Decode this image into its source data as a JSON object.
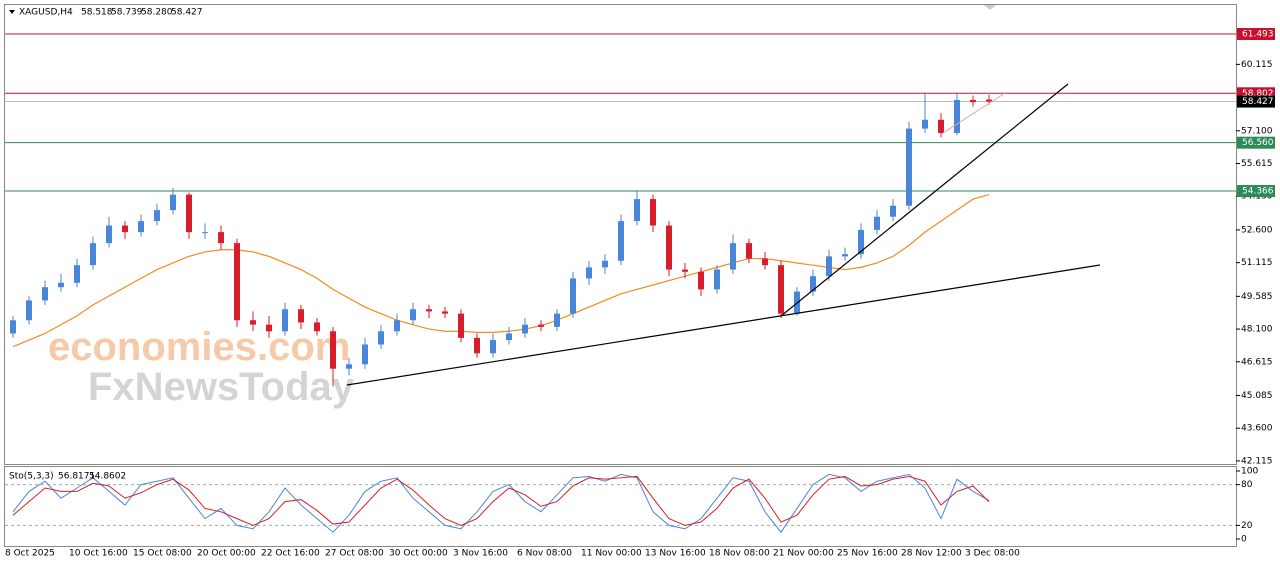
{
  "chart_data": [
    {
      "type": "candlestick",
      "title": "XAGUSD,H4",
      "ohlc_labels": [
        "58.518",
        "58.739",
        "58.280",
        "58.427"
      ],
      "watermark": [
        "economies.com",
        "FxNewsToday"
      ],
      "categories": [
        "8 Oct 2025",
        null,
        null,
        null,
        "10 Oct 16:00",
        null,
        null,
        null,
        "15 Oct 08:00",
        null,
        null,
        null,
        "20 Oct 00:00",
        null,
        null,
        null,
        "22 Oct 16:00",
        null,
        null,
        null,
        "27 Oct 08:00",
        null,
        null,
        null,
        "30 Oct 00:00",
        null,
        null,
        null,
        "3 Nov 16:00",
        null,
        null,
        null,
        "6 Nov 08:00",
        null,
        null,
        null,
        "11 Nov 00:00",
        null,
        null,
        null,
        "13 Nov 16:00",
        null,
        null,
        null,
        "18 Nov 08:00",
        null,
        null,
        null,
        "21 Nov 00:00",
        null,
        null,
        null,
        "25 Nov 16:00",
        null,
        null,
        null,
        "28 Nov 12:00",
        null,
        null,
        null,
        "3 Dec 08:00",
        null
      ],
      "open": [
        47.9,
        48.5,
        49.4,
        50.0,
        50.2,
        51.0,
        52.0,
        52.8,
        52.5,
        53.0,
        53.5,
        54.2,
        52.5,
        52.5,
        52.0,
        48.5,
        48.3,
        48.0,
        49.0,
        48.4,
        48.0,
        46.3,
        46.5,
        47.4,
        48.0,
        48.5,
        49.0,
        48.9,
        48.8,
        47.7,
        47.0,
        47.6,
        47.9,
        48.3,
        48.2,
        48.8,
        50.4,
        50.9,
        51.2,
        53.0,
        54.0,
        52.8,
        50.8,
        50.7,
        49.9,
        50.8,
        52.0,
        51.3,
        51.0,
        48.8,
        49.8,
        50.5,
        51.4,
        51.5,
        52.6,
        53.2,
        53.7,
        57.2,
        57.6,
        57.0,
        58.5,
        58.518
      ],
      "high": [
        48.7,
        49.6,
        50.3,
        50.6,
        51.3,
        52.3,
        53.2,
        53.0,
        53.3,
        53.8,
        54.5,
        54.3,
        52.9,
        52.8,
        52.2,
        48.9,
        48.7,
        49.3,
        49.2,
        48.6,
        48.2,
        46.8,
        47.7,
        48.3,
        48.8,
        49.3,
        49.2,
        49.1,
        49.0,
        47.9,
        47.9,
        48.2,
        48.6,
        48.5,
        49.0,
        50.7,
        51.2,
        51.5,
        53.3,
        54.4,
        54.2,
        53.0,
        51.1,
        50.9,
        51.0,
        52.4,
        52.2,
        51.6,
        51.2,
        50.0,
        50.8,
        51.7,
        51.8,
        52.9,
        53.5,
        54.0,
        57.5,
        58.8,
        57.9,
        58.8,
        58.7,
        58.739
      ],
      "low": [
        47.7,
        48.3,
        49.2,
        49.8,
        50.0,
        50.8,
        51.8,
        52.2,
        52.3,
        52.8,
        53.3,
        52.2,
        52.2,
        51.7,
        48.2,
        48.0,
        47.7,
        47.8,
        48.1,
        47.8,
        45.5,
        46.0,
        46.3,
        47.2,
        47.8,
        48.3,
        48.6,
        48.6,
        47.5,
        46.8,
        46.8,
        47.4,
        47.7,
        48.0,
        48.0,
        48.6,
        50.1,
        50.6,
        51.0,
        52.8,
        52.5,
        50.5,
        50.4,
        49.6,
        49.7,
        50.6,
        51.1,
        50.8,
        48.6,
        48.7,
        49.6,
        50.3,
        51.2,
        51.3,
        52.4,
        53.0,
        53.5,
        57.0,
        56.8,
        56.9,
        58.2,
        58.28
      ],
      "close": [
        48.5,
        49.4,
        50.0,
        50.2,
        51.0,
        52.0,
        52.8,
        52.5,
        53.0,
        53.5,
        54.2,
        52.5,
        52.5,
        52.0,
        48.5,
        48.3,
        48.0,
        49.0,
        48.4,
        48.0,
        46.3,
        46.5,
        47.4,
        48.0,
        48.5,
        49.0,
        48.9,
        48.8,
        47.7,
        47.0,
        47.6,
        47.9,
        48.3,
        48.2,
        48.8,
        50.4,
        50.9,
        51.2,
        53.0,
        54.0,
        52.8,
        50.8,
        50.7,
        49.9,
        50.8,
        52.0,
        51.3,
        51.0,
        48.8,
        49.8,
        50.5,
        51.4,
        51.5,
        52.6,
        53.2,
        53.7,
        57.2,
        57.6,
        57.0,
        58.5,
        58.4,
        58.427
      ],
      "up_color": "#4a86d8",
      "down_color": "#d81e2a",
      "ma": {
        "color": "#f28c1e",
        "values": [
          47.3,
          47.6,
          47.9,
          48.3,
          48.7,
          49.2,
          49.6,
          50.0,
          50.4,
          50.8,
          51.1,
          51.4,
          51.6,
          51.7,
          51.7,
          51.6,
          51.4,
          51.1,
          50.8,
          50.4,
          49.9,
          49.5,
          49.1,
          48.8,
          48.5,
          48.3,
          48.1,
          48.0,
          48.0,
          47.95,
          47.95,
          48.0,
          48.1,
          48.25,
          48.5,
          48.8,
          49.1,
          49.4,
          49.7,
          49.9,
          50.1,
          50.3,
          50.5,
          50.7,
          50.9,
          51.1,
          51.3,
          51.3,
          51.2,
          51.1,
          51.0,
          50.9,
          50.8,
          50.9,
          51.1,
          51.4,
          51.9,
          52.5,
          53.0,
          53.5,
          54.0,
          54.2
        ]
      },
      "levels": [
        {
          "value": 61.493,
          "color": "#c8102e"
        },
        {
          "value": 58.802,
          "color": "#c8102e"
        },
        {
          "value": 58.427,
          "color": "#000000"
        },
        {
          "value": {
            "value": 56.56,
            "label": "56.560"
          },
          "color": "#2e8b57"
        },
        {
          "value": 54.366,
          "color": "#2e8b57"
        }
      ],
      "ylim": [
        42.02,
        62.81
      ],
      "yticks": [
        42.115,
        {
          "value": 43.6,
          "label": "43.600"
        },
        45.085,
        46.615,
        {
          "value": 48.1,
          "label": "48.100"
        },
        49.585,
        51.115,
        {
          "value": 52.6,
          "label": "52.600"
        },
        {
          "value": 54.13,
          "label": "54.130"
        },
        55.615,
        {
          "value": 57.1,
          "label": "57.100"
        },
        60.115
      ]
    },
    {
      "type": "line",
      "title": "Sto(5,3,3)",
      "series": [
        {
          "color": "#4a86d8",
          "values": [
            40,
            70,
            85,
            60,
            75,
            90,
            70,
            50,
            80,
            85,
            90,
            60,
            30,
            45,
            20,
            15,
            40,
            75,
            50,
            30,
            10,
            35,
            70,
            85,
            90,
            60,
            40,
            20,
            15,
            40,
            70,
            80,
            55,
            40,
            65,
            90,
            92,
            85,
            95,
            90,
            40,
            20,
            15,
            30,
            60,
            90,
            85,
            40,
            10,
            45,
            80,
            95,
            90,
            70,
            85,
            90,
            95,
            75,
            30,
            88,
            70,
            56.8171
          ]
        },
        {
          "color": "#d81e2a",
          "values": [
            35,
            55,
            75,
            70,
            70,
            82,
            78,
            60,
            68,
            80,
            88,
            72,
            45,
            40,
            30,
            20,
            30,
            55,
            58,
            42,
            22,
            25,
            50,
            75,
            88,
            72,
            50,
            30,
            20,
            30,
            55,
            75,
            65,
            48,
            55,
            78,
            90,
            88,
            90,
            92,
            60,
            30,
            20,
            25,
            45,
            75,
            88,
            60,
            25,
            35,
            65,
            88,
            92,
            78,
            80,
            88,
            92,
            85,
            50,
            70,
            78,
            54.8602
          ]
        }
      ],
      "ylim": [
        -8.8,
        105.9
      ],
      "yticks": [
        0,
        20,
        80,
        100
      ]
    }
  ]
}
